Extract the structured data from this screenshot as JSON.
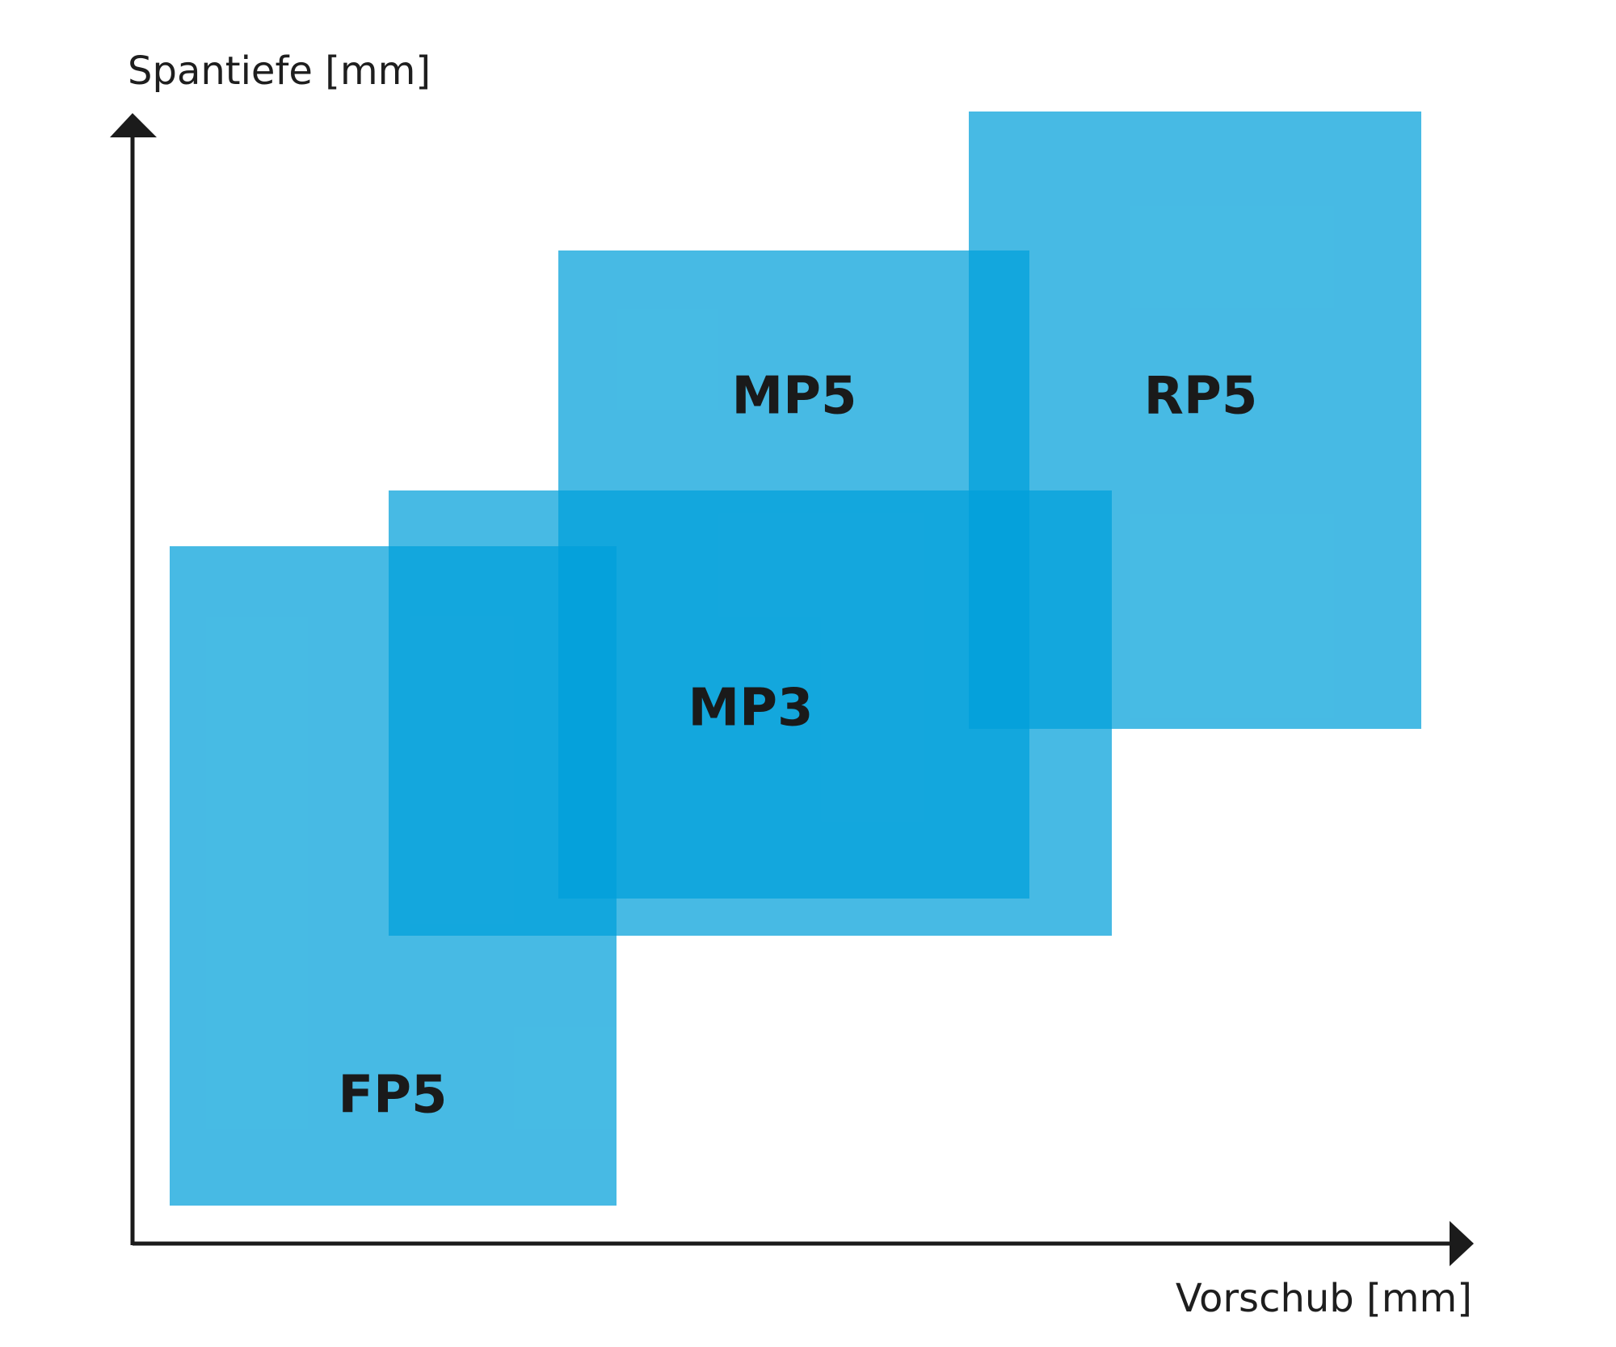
{
  "axes": {
    "x_label": "Vorschub [mm]",
    "y_label": "Spantiefe [mm]"
  },
  "regions": [
    {
      "id": "fp5",
      "label": "FP5"
    },
    {
      "id": "mp3",
      "label": "MP3"
    },
    {
      "id": "mp5",
      "label": "MP5"
    },
    {
      "id": "rp5",
      "label": "RP5"
    }
  ],
  "colors": {
    "region_fill": "#00A0DA",
    "axis": "#1B1B1B",
    "text": "#1A1A1A"
  }
}
